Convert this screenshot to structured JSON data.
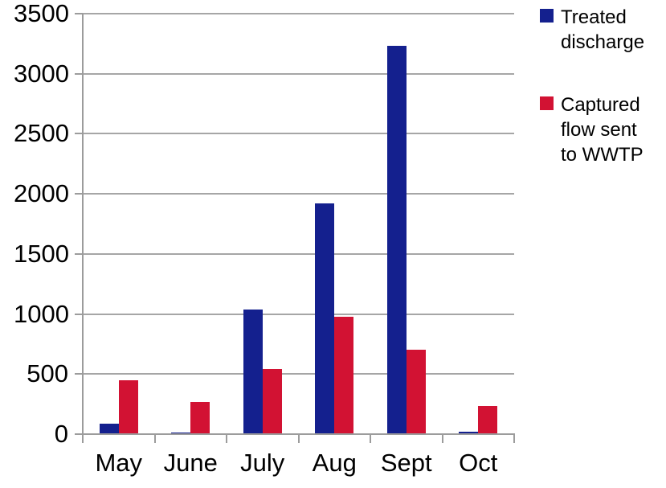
{
  "chart_data": {
    "type": "bar",
    "title": "",
    "xlabel": "",
    "ylabel": "",
    "categories": [
      "May",
      "June",
      "July",
      "Aug",
      "Sept",
      "Oct"
    ],
    "series": [
      {
        "name": "Treated discharge",
        "color": "#14208E",
        "values": [
          90,
          10,
          1040,
          1920,
          3230,
          20
        ]
      },
      {
        "name": "Captured flow sent to WWTP",
        "color": "#D21233",
        "values": [
          450,
          270,
          545,
          980,
          705,
          235
        ]
      }
    ],
    "ylim": [
      0,
      3500
    ],
    "yticks": [
      0,
      500,
      1000,
      1500,
      2000,
      2500,
      3000,
      3500
    ],
    "grid": "horizontal",
    "legend_position": "right"
  },
  "legend": {
    "items": [
      {
        "label": "Treated discharge",
        "color": "#14208E"
      },
      {
        "label": "Captured flow sent to WWTP",
        "color": "#D21233"
      }
    ]
  },
  "colors": {
    "gridline": "#A6A6A6",
    "axis": "#9C9C9C",
    "text": "#000000",
    "background": "#FFFFFF"
  }
}
